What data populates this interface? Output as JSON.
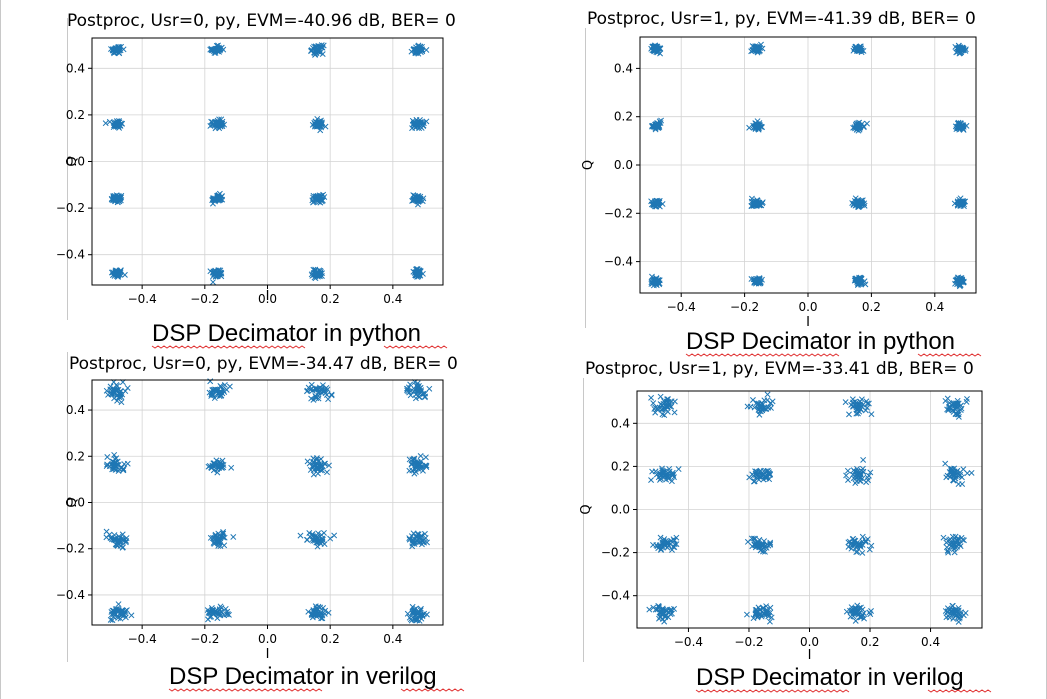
{
  "colors": {
    "series": "#1f77b4",
    "grid": "#d3d3d3",
    "axes": "#000000",
    "spell_underline": "#e03030",
    "divider": "#c8c8c8"
  },
  "chart_data": [
    {
      "type": "scatter",
      "title": "Postproc, Usr=0, py, EVM=-40.96 dB, BER= 0",
      "caption": "DSP Decimator in python",
      "xlabel": "I",
      "ylabel": "Q",
      "xlim": [
        -0.56,
        0.56
      ],
      "ylim": [
        -0.53,
        0.53
      ],
      "xticks": [
        -0.4,
        -0.2,
        0.0,
        0.2,
        0.4
      ],
      "yticks": [
        -0.4,
        -0.2,
        0.0,
        0.2,
        0.4
      ],
      "xtick_labels": [
        "−0.4",
        "−0.2",
        "0.0",
        "0.2",
        "0.4"
      ],
      "ytick_labels": [
        "−0.4",
        "−0.2",
        "0.0",
        "0.2",
        "0.4"
      ],
      "grid": true,
      "marker": "x",
      "cluster_centers": [
        -0.48,
        -0.16,
        0.16,
        0.48
      ],
      "spread": 0.009
    },
    {
      "type": "scatter",
      "title": "Postproc, Usr=1, py, EVM=-41.39 dB, BER= 0",
      "caption": "DSP Decimator in python",
      "xlabel": "I",
      "ylabel": "Q",
      "xlim": [
        -0.53,
        0.53
      ],
      "ylim": [
        -0.53,
        0.53
      ],
      "xticks": [
        -0.4,
        -0.2,
        0.0,
        0.2,
        0.4
      ],
      "yticks": [
        -0.4,
        -0.2,
        0.0,
        0.2,
        0.4
      ],
      "xtick_labels": [
        "−0.4",
        "−0.2",
        "0.0",
        "0.2",
        "0.4"
      ],
      "ytick_labels": [
        "−0.4",
        "−0.2",
        "0.0",
        "0.2",
        "0.4"
      ],
      "grid": true,
      "marker": "x",
      "cluster_centers": [
        -0.48,
        -0.16,
        0.16,
        0.48
      ],
      "spread": 0.008
    },
    {
      "type": "scatter",
      "title": "Postproc, Usr=0, py, EVM=-34.47 dB, BER= 0",
      "caption": "DSP Decimator in verilog",
      "xlabel": "I",
      "ylabel": "Q",
      "xlim": [
        -0.56,
        0.56
      ],
      "ylim": [
        -0.53,
        0.53
      ],
      "xticks": [
        -0.4,
        -0.2,
        0.0,
        0.2,
        0.4
      ],
      "yticks": [
        -0.4,
        -0.2,
        0.0,
        0.2,
        0.4
      ],
      "xtick_labels": [
        "−0.4",
        "−0.2",
        "0.0",
        "0.2",
        "0.4"
      ],
      "ytick_labels": [
        "−0.4",
        "−0.2",
        "0.0",
        "0.2",
        "0.4"
      ],
      "grid": true,
      "marker": "x",
      "cluster_centers": [
        -0.48,
        -0.16,
        0.16,
        0.48
      ],
      "spread": 0.016
    },
    {
      "type": "scatter",
      "title": "Postproc, Usr=1, py, EVM=-33.41 dB, BER= 0",
      "caption": "DSP Decimator in verilog",
      "xlabel": "I",
      "ylabel": "Q",
      "xlim": [
        -0.57,
        0.57
      ],
      "ylim": [
        -0.55,
        0.55
      ],
      "xticks": [
        -0.4,
        -0.2,
        0.0,
        0.2,
        0.4
      ],
      "yticks": [
        -0.4,
        -0.2,
        0.0,
        0.2,
        0.4
      ],
      "xtick_labels": [
        "−0.4",
        "−0.2",
        "0.0",
        "0.2",
        "0.4"
      ],
      "ytick_labels": [
        "−0.4",
        "−0.2",
        "0.0",
        "0.2",
        "0.4"
      ],
      "grid": true,
      "marker": "x",
      "cluster_centers": [
        -0.48,
        -0.16,
        0.16,
        0.48
      ],
      "spread": 0.018
    }
  ]
}
